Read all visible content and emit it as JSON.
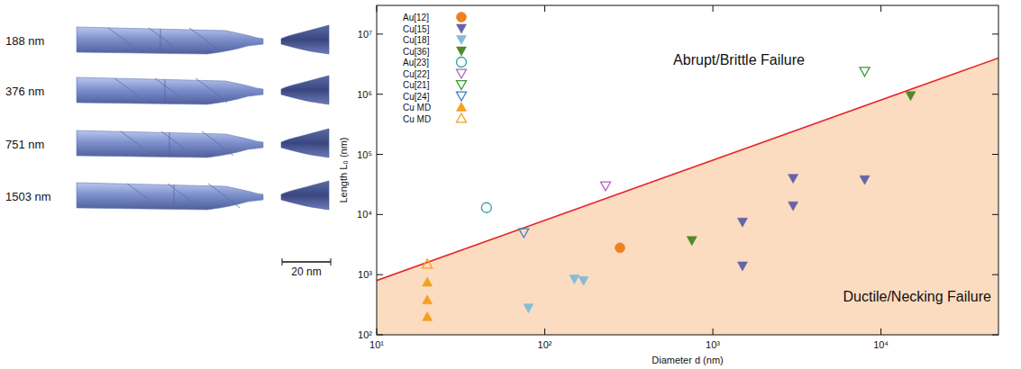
{
  "images": {
    "labels": [
      "188 nm",
      "376 nm",
      "751 nm",
      "1503 nm"
    ],
    "scale_bar": "20 nm"
  },
  "chart_data": {
    "type": "scatter",
    "log": true,
    "x_label": "Diameter d (nm)",
    "y_label": "Length L₀ (nm)",
    "xlim": [
      10,
      50000
    ],
    "ylim": [
      100,
      30000000
    ],
    "xticks": [
      {
        "value": 10,
        "label": "10¹"
      },
      {
        "value": 100,
        "label": "10²"
      },
      {
        "value": 1000,
        "label": "10³"
      },
      {
        "value": 10000,
        "label": "10⁴"
      }
    ],
    "yticks": [
      {
        "value": 100,
        "label": "10²"
      },
      {
        "value": 1000,
        "label": "10³"
      },
      {
        "value": 10000,
        "label": "10⁴"
      },
      {
        "value": 100000,
        "label": "10⁵"
      },
      {
        "value": 1000000,
        "label": "10⁶"
      },
      {
        "value": 10000000,
        "label": "10⁷"
      }
    ],
    "legend": "top-left",
    "annotations": [
      "Abrupt/Brittle Failure",
      "Ductile/Necking Failure"
    ],
    "boundary": {
      "color": "#e8262a",
      "x": [
        10,
        50000
      ],
      "values": [
        800,
        4000000
      ]
    },
    "series": [
      {
        "name": "Au[12]",
        "color": "#f07f1e",
        "marker": "circle",
        "x": [
          280
        ],
        "values": [
          2800
        ]
      },
      {
        "name": "Cu[15]",
        "color": "#6464a8",
        "marker": "triangle-down",
        "x": [
          1500,
          1500,
          3000,
          3000,
          8000
        ],
        "values": [
          1400,
          7500,
          14000,
          40000,
          38000
        ]
      },
      {
        "name": "Cu[18]",
        "color": "#86bcd4",
        "marker": "triangle-down",
        "x": [
          80,
          150,
          170
        ],
        "values": [
          280,
          850,
          800
        ]
      },
      {
        "name": "Cu[36]",
        "color": "#4f8a2c",
        "marker": "triangle-down",
        "x": [
          750,
          15000
        ],
        "values": [
          3700,
          950000
        ]
      },
      {
        "name": "Au[23]",
        "color": "#2aa19a",
        "marker": "circle-open",
        "x": [
          45
        ],
        "values": [
          13000
        ]
      },
      {
        "name": "Cu[22]",
        "color": "#b064c0",
        "marker": "triangle-down-open",
        "x": [
          230
        ],
        "values": [
          30000
        ]
      },
      {
        "name": "Cu[21]",
        "color": "#3a9a3a",
        "marker": "triangle-down-open",
        "x": [
          8000
        ],
        "values": [
          2400000
        ]
      },
      {
        "name": "Cu[24]",
        "color": "#3a80c8",
        "marker": "triangle-down-open",
        "x": [
          75
        ],
        "values": [
          5000
        ]
      },
      {
        "name": "Cu MD",
        "color": "#f5a020",
        "marker": "triangle-up",
        "x": [
          20,
          20,
          20
        ],
        "values": [
          200,
          380,
          750
        ]
      },
      {
        "name": "Cu MD",
        "color": "#f5a020",
        "marker": "triangle-up-open",
        "x": [
          20
        ],
        "values": [
          1500
        ]
      }
    ]
  }
}
